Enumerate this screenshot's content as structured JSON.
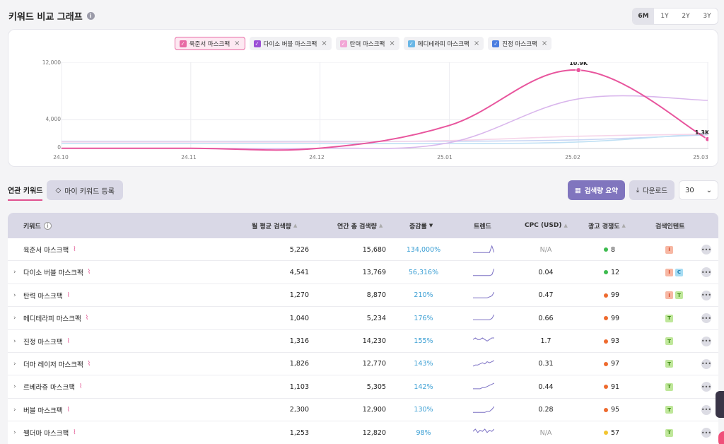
{
  "header": {
    "title": "키워드 비교 그래프",
    "info_icon": "info-icon"
  },
  "periods": [
    {
      "label": "6M",
      "active": true
    },
    {
      "label": "1Y",
      "active": false
    },
    {
      "label": "2Y",
      "active": false
    },
    {
      "label": "3Y",
      "active": false
    }
  ],
  "legend": [
    {
      "label": "육준서 마스크팩",
      "color": "#e86aa4",
      "active": true
    },
    {
      "label": "다이소 버블 마스크팩",
      "color": "#9b4fd6",
      "active": false
    },
    {
      "label": "탄력 마스크팩",
      "color": "#f2a6d6",
      "active": false
    },
    {
      "label": "메디테라피 마스크팩",
      "color": "#6ab7e6",
      "active": false
    },
    {
      "label": "진정 마스크팩",
      "color": "#4a7de0",
      "active": false
    }
  ],
  "chart_data": {
    "type": "line",
    "categories": [
      "24.10",
      "24.11",
      "24.12",
      "25.01",
      "25.02",
      "25.03"
    ],
    "y_ticks": [
      "12,000",
      "4,000",
      "0"
    ],
    "ylim": [
      0,
      12000
    ],
    "annotations": [
      {
        "x": "25.02",
        "label": "10.9K"
      },
      {
        "x": "25.03",
        "label": "1.3K"
      }
    ],
    "series": [
      {
        "name": "육준서 마스크팩",
        "color": "#e8559d",
        "values": [
          20,
          20,
          40,
          3200,
          10900,
          1300
        ]
      },
      {
        "name": "다이소 버블 마스크팩",
        "color": "#d9b6ec",
        "values": [
          20,
          20,
          30,
          800,
          6900,
          6700
        ]
      },
      {
        "name": "탄력 마스크팩",
        "color": "#f6d5e9",
        "values": [
          900,
          900,
          900,
          1100,
          1700,
          2000
        ]
      },
      {
        "name": "메디테라피 마스크팩",
        "color": "#bfe0f4",
        "values": [
          700,
          700,
          700,
          700,
          900,
          2100
        ]
      },
      {
        "name": "진정 마스크팩",
        "color": "#c8d6f4",
        "values": [
          1000,
          1000,
          1000,
          1000,
          1200,
          1900
        ]
      }
    ]
  },
  "toolbar": {
    "tab_related": "연관 키워드",
    "tab_my": "마이 키워드 등록",
    "summary": "검색량 요약",
    "download": "다운로드",
    "count": "30"
  },
  "table": {
    "headers": {
      "keyword": "키워드",
      "monthly": "월 평균 검색량",
      "yearly": "연간 총 검색량",
      "growth": "증감률",
      "trend": "트렌드",
      "cpc": "CPC (USD)",
      "comp": "광고 경쟁도",
      "intent": "검색인텐트"
    },
    "rows": [
      {
        "keyword": "육준서 마스크팩",
        "expand": false,
        "monthly": "5,226",
        "yearly": "15,680",
        "growth": "134,000%",
        "cpc": "N/A",
        "comp": "8",
        "comp_color": "#3dbb4e",
        "intents": [
          [
            "I",
            "#f7b7a3",
            "#d94c2c"
          ]
        ],
        "spark": [
          1,
          1,
          1,
          1,
          1,
          1,
          1,
          1,
          6,
          1
        ]
      },
      {
        "keyword": "다이소 버블 마스크팩",
        "expand": true,
        "monthly": "4,541",
        "yearly": "13,769",
        "growth": "56,316%",
        "cpc": "0.04",
        "comp": "12",
        "comp_color": "#3dbb4e",
        "intents": [
          [
            "I",
            "#f7b7a3",
            "#d94c2c"
          ],
          [
            "C",
            "#a6dcf3",
            "#1e7fb3"
          ]
        ],
        "spark": [
          1,
          1,
          1,
          1,
          1,
          1,
          1,
          1,
          2,
          9
        ]
      },
      {
        "keyword": "탄력 마스크팩",
        "expand": true,
        "monthly": "1,270",
        "yearly": "8,870",
        "growth": "210%",
        "cpc": "0.47",
        "comp": "99",
        "comp_color": "#ee6a2e",
        "intents": [
          [
            "I",
            "#f7b7a3",
            "#d94c2c"
          ],
          [
            "T",
            "#bfe79a",
            "#3f8a16"
          ]
        ],
        "spark": [
          2,
          2,
          2,
          2,
          2,
          2,
          2,
          3,
          4,
          8
        ]
      },
      {
        "keyword": "메디테라피 마스크팩",
        "expand": true,
        "monthly": "1,040",
        "yearly": "5,234",
        "growth": "176%",
        "cpc": "0.66",
        "comp": "99",
        "comp_color": "#ee6a2e",
        "intents": [
          [
            "T",
            "#bfe79a",
            "#3f8a16"
          ]
        ],
        "spark": [
          2,
          2,
          2,
          2,
          2,
          2,
          2,
          2,
          3,
          6
        ]
      },
      {
        "keyword": "진정 마스크팩",
        "expand": true,
        "monthly": "1,316",
        "yearly": "14,230",
        "growth": "155%",
        "cpc": "1.7",
        "comp": "93",
        "comp_color": "#ee6a2e",
        "intents": [
          [
            "T",
            "#bfe79a",
            "#3f8a16"
          ]
        ],
        "spark": [
          4,
          5,
          4,
          4,
          5,
          4,
          3,
          4,
          5,
          5
        ]
      },
      {
        "keyword": "더마 레이저 마스크팩",
        "expand": true,
        "monthly": "1,826",
        "yearly": "12,770",
        "growth": "143%",
        "cpc": "0.31",
        "comp": "97",
        "comp_color": "#ee6a2e",
        "intents": [
          [
            "T",
            "#bfe79a",
            "#3f8a16"
          ]
        ],
        "spark": [
          2,
          3,
          3,
          4,
          5,
          4,
          6,
          5,
          6,
          7
        ]
      },
      {
        "keyword": "르베라쥬 마스크팩",
        "expand": true,
        "monthly": "1,103",
        "yearly": "5,305",
        "growth": "142%",
        "cpc": "0.44",
        "comp": "91",
        "comp_color": "#ee6a2e",
        "intents": [
          [
            "T",
            "#bfe79a",
            "#3f8a16"
          ]
        ],
        "spark": [
          2,
          2,
          2,
          2,
          3,
          3,
          4,
          5,
          6,
          7
        ]
      },
      {
        "keyword": "버블 마스크팩",
        "expand": true,
        "monthly": "2,300",
        "yearly": "12,900",
        "growth": "130%",
        "cpc": "0.28",
        "comp": "95",
        "comp_color": "#ee6a2e",
        "intents": [
          [
            "T",
            "#bfe79a",
            "#3f8a16"
          ]
        ],
        "spark": [
          2,
          2,
          2,
          2,
          2,
          2,
          3,
          3,
          5,
          8
        ]
      },
      {
        "keyword": "웰더마 마스크팩",
        "expand": true,
        "monthly": "1,253",
        "yearly": "12,820",
        "growth": "98%",
        "cpc": "N/A",
        "comp": "57",
        "comp_color": "#f2c530",
        "intents": [
          [
            "T",
            "#bfe79a",
            "#3f8a16"
          ]
        ],
        "spark": [
          5,
          7,
          4,
          6,
          5,
          7,
          4,
          6,
          5,
          7
        ]
      }
    ]
  }
}
